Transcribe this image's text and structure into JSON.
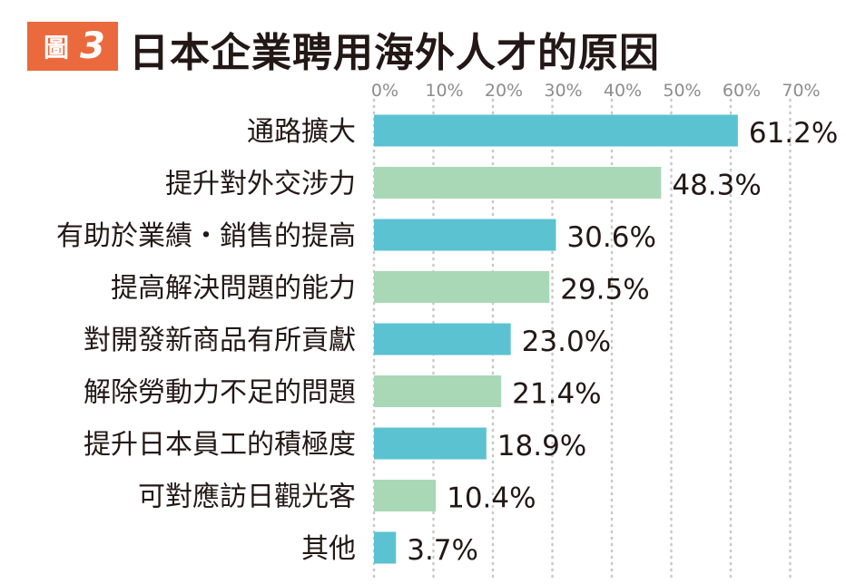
{
  "header": {
    "badge_word": "圖",
    "badge_number": "3",
    "title": "日本企業聘用海外人才的原因"
  },
  "colors": {
    "badge": "#ea6a3e",
    "bar_blue": "#5bc2d1",
    "bar_green": "#a9d8b6",
    "text": "#231815",
    "tick_text": "#8c8c8c",
    "grid": "#c8c8c8"
  },
  "chart_data": {
    "type": "bar",
    "orientation": "horizontal",
    "title": "日本企業聘用海外人才的原因",
    "xlim": [
      0,
      70
    ],
    "ticks": [
      "0%",
      "10%",
      "20%",
      "30%",
      "40%",
      "50%",
      "60%",
      "70%"
    ],
    "grid": true,
    "categories": [
      "通路擴大",
      "提升對外交涉力",
      "有助於業績・銷售的提高",
      "提高解決問題的能力",
      "對開發新商品有所貢獻",
      "解除勞動力不足的問題",
      "提升日本員工的積極度",
      "可對應訪日觀光客",
      "其他"
    ],
    "values": [
      61.2,
      48.3,
      30.6,
      29.5,
      23.0,
      21.4,
      18.9,
      10.4,
      3.7
    ],
    "value_labels": [
      "61.2%",
      "48.3%",
      "30.6%",
      "29.5%",
      "23.0%",
      "21.4%",
      "18.9%",
      "10.4%",
      "3.7%"
    ]
  }
}
